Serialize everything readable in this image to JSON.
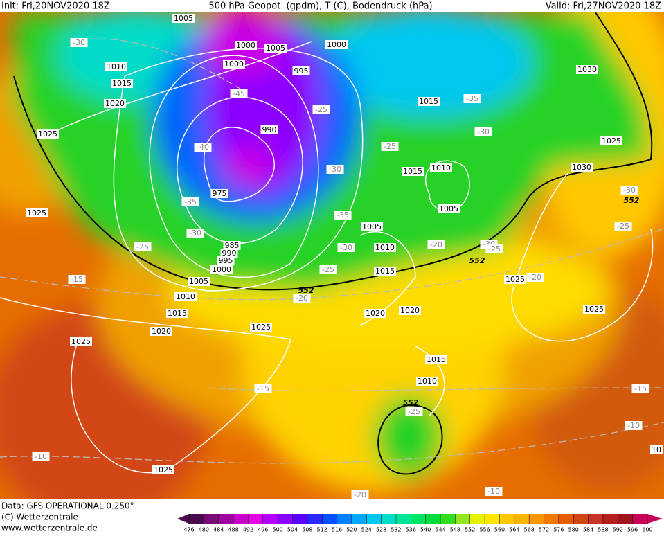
{
  "header": {
    "init": "Init: Fri,20NOV2020 18Z",
    "title": "500 hPa Geopot. (gpdm), T (C), Bodendruck (hPa)",
    "valid": "Valid: Fri,27NOV2020 18Z"
  },
  "footer": {
    "data": "Data: GFS OPERATIONAL 0.250°",
    "copyright": "(C) Wetterzentrale",
    "url": "www.wetterzentrale.de"
  },
  "legend": {
    "values": [
      476,
      480,
      484,
      488,
      492,
      496,
      500,
      504,
      508,
      512,
      516,
      520,
      524,
      528,
      532,
      536,
      540,
      544,
      548,
      552,
      556,
      560,
      564,
      568,
      572,
      576,
      580,
      584,
      588,
      592,
      596,
      600
    ],
    "colors": [
      "#4b0a4b",
      "#7a0a7a",
      "#a000a0",
      "#c800c8",
      "#e600e6",
      "#b400ff",
      "#8c00ff",
      "#5a00ff",
      "#2828ff",
      "#0050ff",
      "#0080ff",
      "#00a8ff",
      "#00c8f0",
      "#00dcc8",
      "#00e696",
      "#00e664",
      "#00dc3c",
      "#32dc1e",
      "#96e61e",
      "#e6f000",
      "#ffe600",
      "#ffc800",
      "#ffb400",
      "#ff9600",
      "#f07800",
      "#e65a00",
      "#d24614",
      "#c83228",
      "#b41e1e",
      "#a0141e",
      "#c8005a"
    ]
  },
  "map": {
    "isobar_labels": [
      1005,
      1000,
      1005,
      1000,
      1010,
      1000,
      995,
      1015,
      1030,
      1020,
      1015,
      990,
      1025,
      1025,
      1015,
      1010,
      1030,
      975,
      1025,
      1005,
      1005,
      985,
      990,
      995,
      1000,
      1010,
      1015,
      1005,
      1010,
      1015,
      1025,
      1025,
      1020,
      1020,
      1025,
      1020,
      1025,
      1015,
      1010,
      1025,
      10
    ],
    "temperature_labels": [
      -30,
      -35,
      -45,
      -25,
      -30,
      -40,
      -25,
      -30,
      -30,
      -35,
      -35,
      -25,
      -30,
      -25,
      -30,
      -20,
      -30,
      -25,
      -25,
      -20,
      -15,
      -20,
      -15,
      -15,
      -10,
      -10,
      -25,
      -20,
      -10
    ],
    "geopotential_labels": [
      552,
      552,
      552,
      552
    ]
  }
}
